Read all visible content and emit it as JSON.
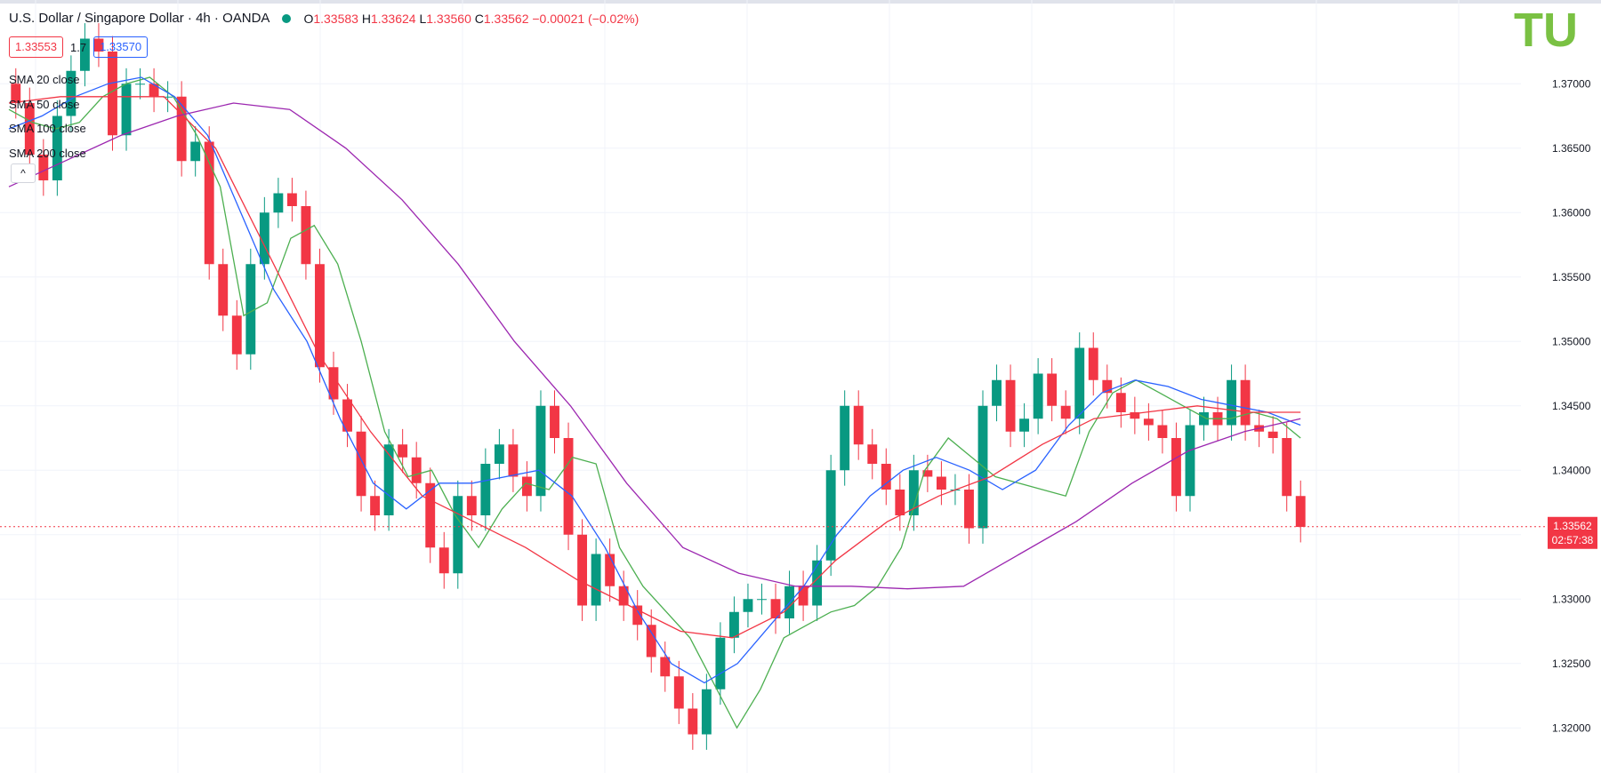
{
  "header": {
    "symbol": "U.S. Dollar / Singapore Dollar · 4h · OANDA",
    "o_label": "O",
    "o": "1.33583",
    "h_label": "H",
    "h": "1.33624",
    "l_label": "L",
    "l": "1.33560",
    "c_label": "C",
    "c": "1.33562",
    "change": "−0.00021 (−0.02%)"
  },
  "quote": {
    "bid": "1.33553",
    "spread": "1.7",
    "ask": "1.33570"
  },
  "indicators": [
    {
      "label": "SMA 20 close",
      "color": "#4caf50"
    },
    {
      "label": "SMA 50 close",
      "color": "#2962ff"
    },
    {
      "label": "SMA 100 close",
      "color": "#f23645"
    },
    {
      "label": "SMA 200 close",
      "color": "#9c27b0"
    }
  ],
  "collapse_icon": "^",
  "logo_text": "TU",
  "colors": {
    "up": "#089981",
    "down": "#f23645",
    "grid": "#f0f3fa",
    "logo": "#7ac143"
  },
  "chart_data": {
    "type": "candlestick",
    "ylim": [
      1.3165,
      1.3765
    ],
    "y_ticks": [
      "1.37000",
      "1.36500",
      "1.36000",
      "1.35500",
      "1.35000",
      "1.34500",
      "1.34000",
      "1.33500",
      "1.33000",
      "1.32500",
      "1.32000"
    ],
    "last_price": "1.33562",
    "countdown": "02:57:38",
    "close": [
      1.3685,
      1.3645,
      1.3625,
      1.3675,
      1.371,
      1.3735,
      1.3725,
      1.366,
      1.37,
      1.37,
      1.369,
      1.369,
      1.364,
      1.3655,
      1.356,
      1.352,
      1.349,
      1.356,
      1.36,
      1.3615,
      1.3605,
      1.356,
      1.348,
      1.3455,
      1.343,
      1.338,
      1.3365,
      1.342,
      1.341,
      1.339,
      1.334,
      1.332,
      1.338,
      1.3365,
      1.3405,
      1.342,
      1.3395,
      1.338,
      1.345,
      1.3425,
      1.335,
      1.3295,
      1.3335,
      1.331,
      1.3295,
      1.328,
      1.3255,
      1.324,
      1.3215,
      1.3195,
      1.323,
      1.327,
      1.329,
      1.33,
      1.33,
      1.3285,
      1.331,
      1.3295,
      1.333,
      1.34,
      1.345,
      1.342,
      1.3405,
      1.3385,
      1.3365,
      1.34,
      1.3395,
      1.3385,
      1.3385,
      1.3355,
      1.345,
      1.347,
      1.343,
      1.344,
      1.3475,
      1.345,
      1.344,
      1.3495,
      1.347,
      1.346,
      1.3445,
      1.344,
      1.3435,
      1.3425,
      1.338,
      1.3435,
      1.3445,
      1.3435,
      1.347,
      1.3435,
      1.343,
      1.3425,
      1.338,
      1.3356
    ],
    "series": [
      {
        "name": "SMA 20 close",
        "values": [
          1.368,
          1.367,
          1.3665,
          1.367,
          1.369,
          1.37,
          1.3705,
          1.369,
          1.366,
          1.362,
          1.352,
          1.353,
          1.358,
          1.359,
          1.356,
          1.35,
          1.343,
          1.3395,
          1.34,
          1.3365,
          1.334,
          1.337,
          1.339,
          1.3385,
          1.341,
          1.3405,
          1.334,
          1.331,
          1.329,
          1.327,
          1.3235,
          1.32,
          1.323,
          1.327,
          1.328,
          1.329,
          1.3295,
          1.331,
          1.334,
          1.34,
          1.3425,
          1.341,
          1.3395,
          1.339,
          1.3385,
          1.338,
          1.343,
          1.346,
          1.347,
          1.346,
          1.345,
          1.344,
          1.344,
          1.3445,
          1.344,
          1.3425
        ]
      },
      {
        "name": "SMA 50 close",
        "values": [
          1.3665,
          1.3675,
          1.369,
          1.37,
          1.3705,
          1.369,
          1.366,
          1.36,
          1.354,
          1.35,
          1.344,
          1.339,
          1.337,
          1.339,
          1.339,
          1.3395,
          1.34,
          1.338,
          1.334,
          1.329,
          1.325,
          1.3235,
          1.325,
          1.328,
          1.331,
          1.335,
          1.338,
          1.34,
          1.341,
          1.34,
          1.3385,
          1.34,
          1.3435,
          1.346,
          1.347,
          1.3465,
          1.3455,
          1.345,
          1.3445,
          1.3435
        ]
      },
      {
        "name": "SMA 100 close",
        "values": [
          1.3685,
          1.369,
          1.369,
          1.369,
          1.365,
          1.357,
          1.349,
          1.343,
          1.338,
          1.336,
          1.334,
          1.3315,
          1.3295,
          1.3275,
          1.327,
          1.329,
          1.333,
          1.336,
          1.338,
          1.3395,
          1.342,
          1.344,
          1.3445,
          1.345,
          1.3445,
          1.3445
        ]
      },
      {
        "name": "SMA 200 close",
        "values": [
          1.362,
          1.364,
          1.366,
          1.3675,
          1.3685,
          1.368,
          1.365,
          1.361,
          1.356,
          1.35,
          1.345,
          1.339,
          1.334,
          1.332,
          1.331,
          1.331,
          1.3308,
          1.331,
          1.3335,
          1.336,
          1.339,
          1.3415,
          1.343,
          1.344
        ]
      }
    ]
  }
}
